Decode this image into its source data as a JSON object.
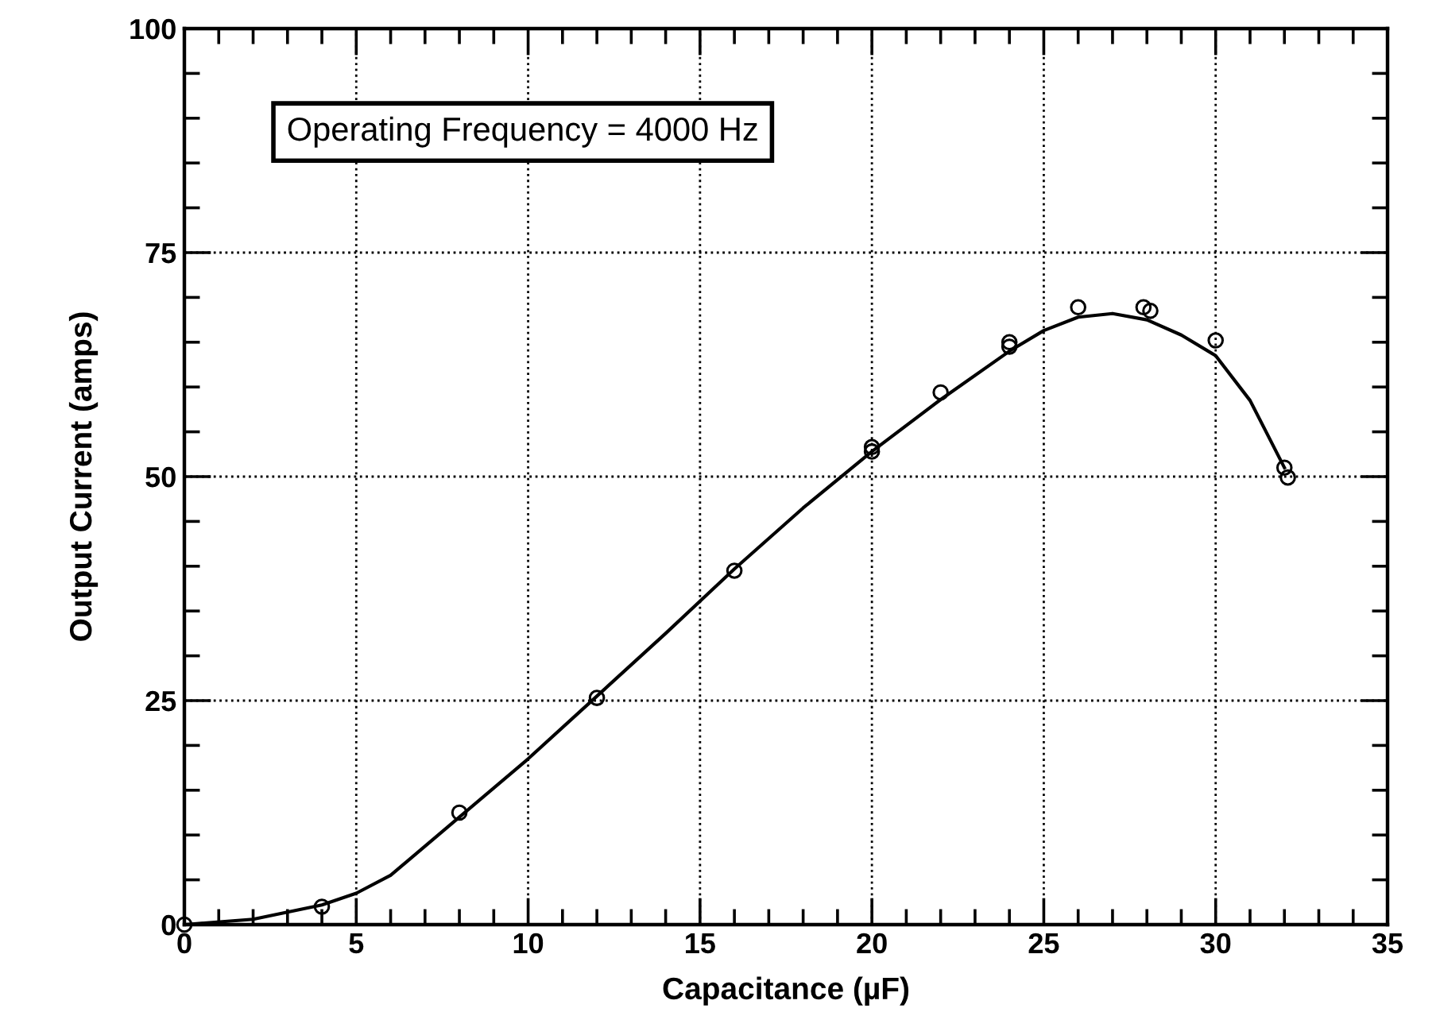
{
  "chart_data": {
    "type": "scatter",
    "xlabel": "Capacitance (µF)",
    "ylabel": "Output Current (amps)",
    "annotations": [
      "Operating Frequency = 4000 Hz"
    ],
    "series": [
      {
        "color": "#000000",
        "marker": "circle",
        "x": [
          0,
          4,
          8,
          12,
          16,
          20,
          20,
          22,
          24,
          24,
          26,
          27.9,
          28.1,
          30,
          32,
          32.1
        ],
        "values": [
          0,
          2,
          12.5,
          25.3,
          39.5,
          53.3,
          52.8,
          59.4,
          64.5,
          65,
          68.9,
          68.9,
          68.5,
          65.2,
          51,
          49.9
        ]
      },
      {
        "type": "line",
        "color": "#000000",
        "marker": "none",
        "line_style": "solid",
        "x": [
          0,
          2,
          4,
          5,
          6,
          8,
          10,
          12,
          14,
          16,
          18,
          20,
          22,
          24,
          25,
          26,
          27,
          28,
          29,
          30,
          31,
          31.6,
          32
        ],
        "values": [
          0,
          0.6,
          2.2,
          3.5,
          5.5,
          12,
          18.5,
          25.5,
          32.5,
          39.7,
          46.5,
          52.8,
          58.6,
          64,
          66.3,
          67.8,
          68.2,
          67.5,
          65.8,
          63.5,
          58.5,
          54,
          51
        ]
      }
    ],
    "xlim": [
      0,
      35
    ],
    "xticks": [
      0,
      5,
      10,
      15,
      20,
      25,
      30,
      35
    ],
    "ylim": [
      0,
      100
    ],
    "yticks": [
      0,
      25,
      50,
      75,
      100
    ],
    "grid": true,
    "legend": false
  }
}
